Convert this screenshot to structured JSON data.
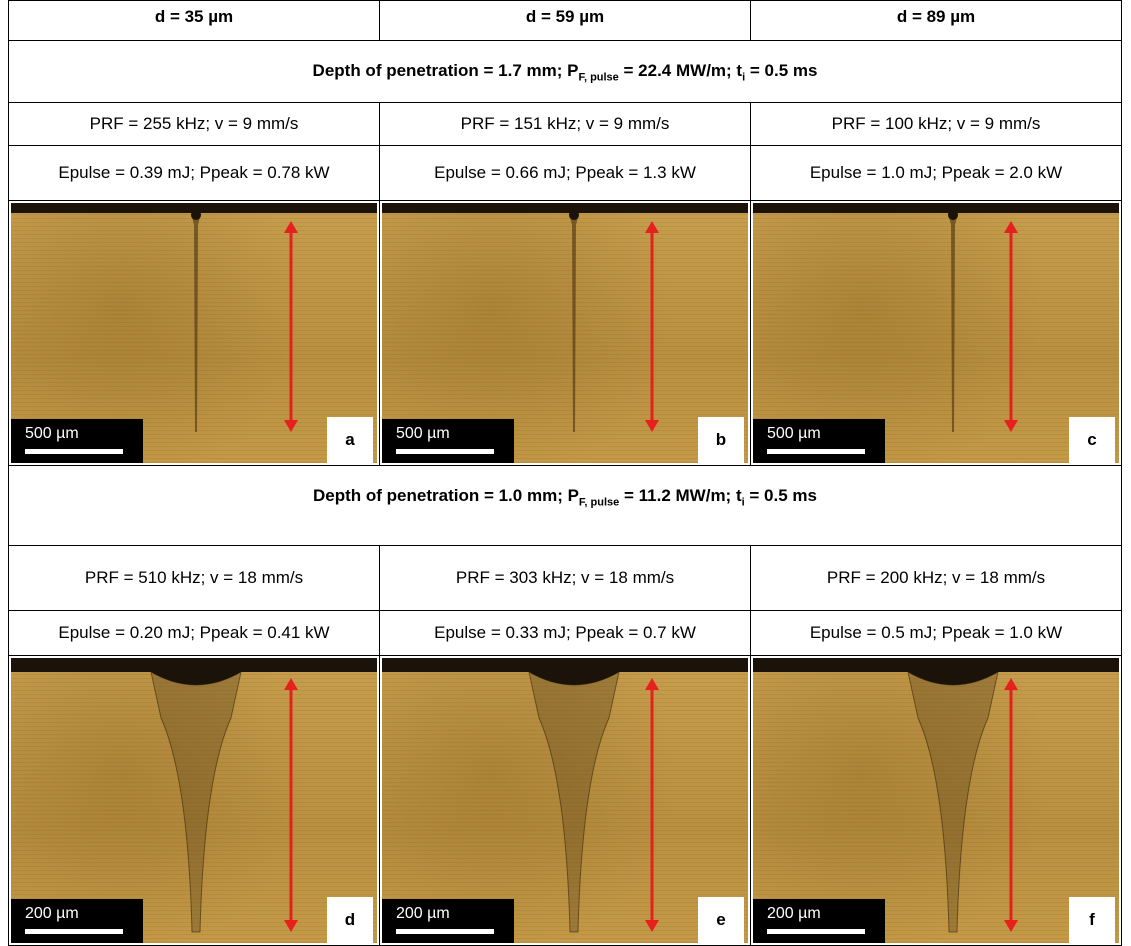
{
  "table": {
    "header": [
      "d = 35 µm",
      "d = 59 µm",
      "d = 89 µm"
    ],
    "groups": [
      {
        "depth": [
          {
            "text": "Depth of penetration = 1.7 mm; P"
          },
          {
            "sub": "F, pulse"
          },
          {
            "text": " = 22.4 MW/m; t"
          },
          {
            "sub": "i"
          },
          {
            "text": " = 0.5 ms"
          }
        ],
        "prf": [
          "PRF = 255 kHz; v = 9 mm/s",
          "PRF = 151 kHz; v = 9 mm/s",
          "PRF = 100 kHz; v = 9 mm/s"
        ],
        "epulse": [
          "Epulse = 0.39 mJ; Ppeak = 0.78 kW",
          "Epulse = 0.66 mJ; Ppeak = 1.3 kW",
          "Epulse = 1.0 mJ; Ppeak = 2.0 kW"
        ],
        "panels": [
          {
            "scale": "500 µm",
            "label": "a"
          },
          {
            "scale": "500 µm",
            "label": "b"
          },
          {
            "scale": "500 µm",
            "label": "c"
          }
        ]
      },
      {
        "depth": [
          {
            "text": "Depth of penetration = 1.0 mm; P"
          },
          {
            "sub": "F, pulse"
          },
          {
            "text": " = 11.2 MW/m; t"
          },
          {
            "sub": "i"
          },
          {
            "text": " = 0.5 ms"
          }
        ],
        "prf": [
          "PRF = 510 kHz; v = 18 mm/s",
          "PRF = 303 kHz; v = 18 mm/s",
          "PRF = 200 kHz; v = 18 mm/s"
        ],
        "epulse": [
          "Epulse = 0.20 mJ; Ppeak = 0.41 kW",
          "Epulse = 0.33 mJ; Ppeak = 0.7 kW",
          "Epulse = 0.5 mJ; Ppeak = 1.0 kW"
        ],
        "panels": [
          {
            "scale": "200 µm",
            "label": "d"
          },
          {
            "scale": "200 µm",
            "label": "e"
          },
          {
            "scale": "200 µm",
            "label": "f"
          }
        ]
      }
    ]
  }
}
